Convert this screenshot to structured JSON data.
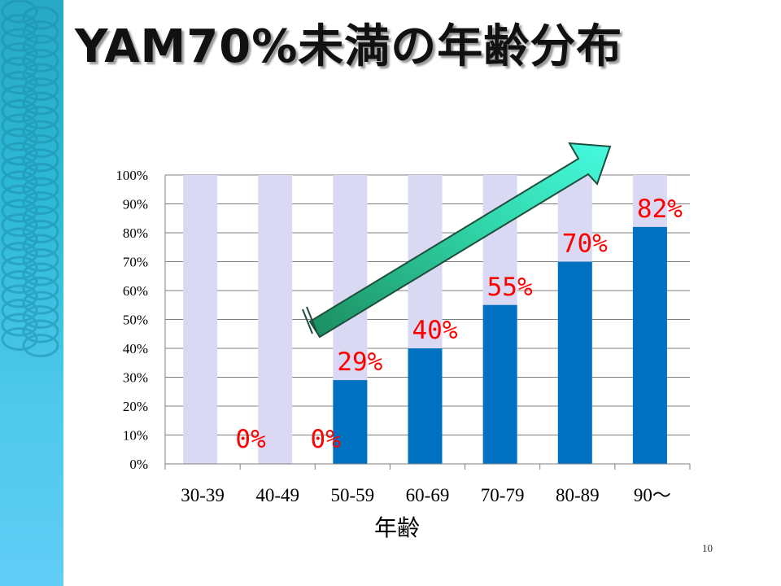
{
  "slide": {
    "title": "YAM70%未満の年齢分布",
    "page_number": "10"
  },
  "colors": {
    "bar_fill": "#0070c0",
    "bar_background": "#d9d9f3",
    "data_label": "#ff0000",
    "arrow_fill": "#3ef0cf",
    "side_band": "#2fb6d8"
  },
  "chart_data": {
    "type": "bar",
    "categories": [
      "30-39",
      "40-49",
      "50-59",
      "60-69",
      "70-79",
      "80-89",
      "90～"
    ],
    "values": [
      0,
      0,
      29,
      40,
      55,
      70,
      82
    ],
    "background_values": [
      100,
      100,
      100,
      100,
      100,
      100,
      100
    ],
    "data_labels": [
      "0%",
      "0%",
      "29%",
      "40%",
      "55%",
      "70%",
      "82%"
    ],
    "y_ticks": [
      "0%",
      "10%",
      "20%",
      "30%",
      "40%",
      "50%",
      "60%",
      "70%",
      "80%",
      "90%",
      "100%"
    ],
    "ylim": [
      0,
      100
    ],
    "xlabel": "年齢",
    "ylabel": "",
    "grid": true,
    "legend": "none",
    "annotation": "upward-trend-arrow"
  }
}
